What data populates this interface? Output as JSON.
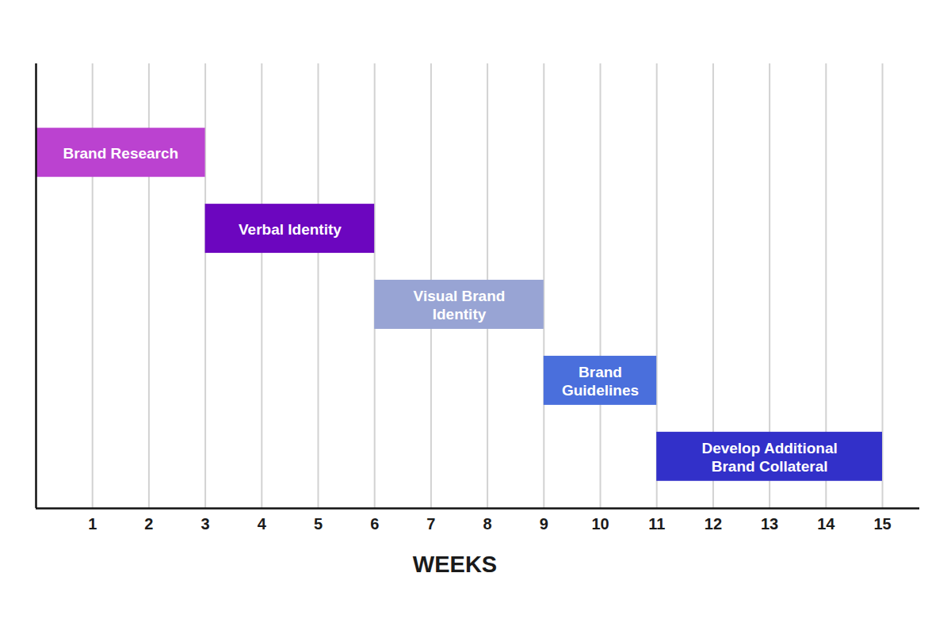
{
  "chart_data": {
    "type": "gantt",
    "xlabel": "WEEKS",
    "categories": [
      "Brand Research",
      "Verbal Identity",
      "Visual Brand\nIdentity",
      "Brand\nGuidelines",
      "Develop Additional\nBrand Collateral"
    ],
    "start": [
      0,
      3,
      6,
      9,
      11
    ],
    "end": [
      3,
      6,
      9,
      11,
      15
    ],
    "colors": [
      "#bb42d0",
      "#6c06bf",
      "#98a4d4",
      "#4a6fdc",
      "#3230c9"
    ],
    "xlim": [
      0,
      15.66
    ],
    "xticks": [
      1,
      2,
      3,
      4,
      5,
      6,
      7,
      8,
      9,
      10,
      11,
      12,
      13,
      14,
      15
    ],
    "grid": true,
    "tick_labels": "x"
  }
}
